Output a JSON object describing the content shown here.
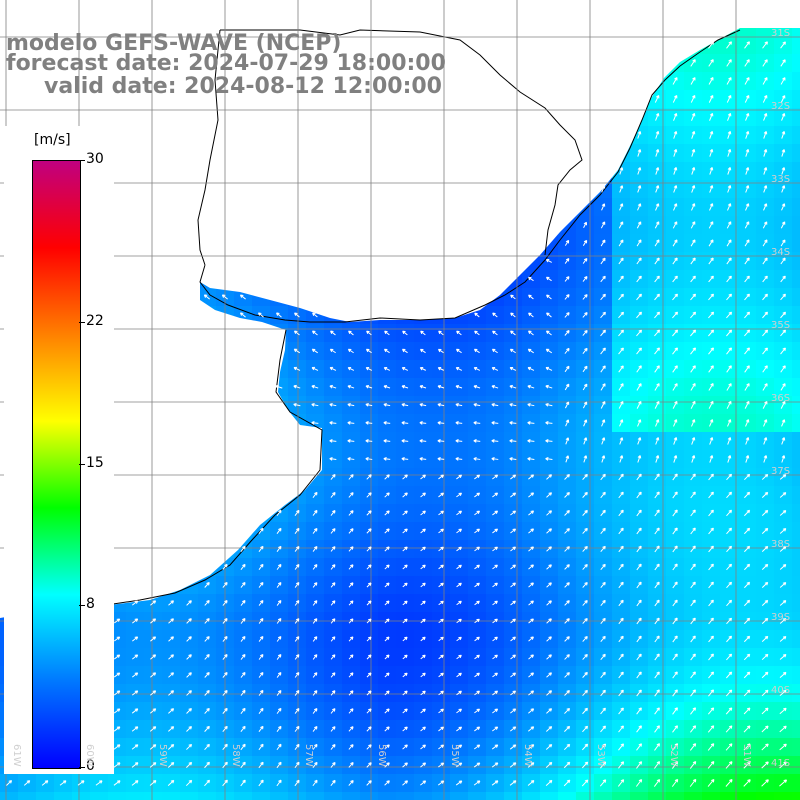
{
  "header": {
    "line1": "modelo GEFS-WAVE (NCEP)",
    "line2": "forecast date: 2024-07-29 18:00:00",
    "line3": "valid date: 2024-08-12 12:00:00"
  },
  "colorbar": {
    "unit": "[m/s]",
    "ticks": [
      "30",
      "22",
      "15",
      "8",
      "0"
    ],
    "tick_values": [
      30,
      22,
      15,
      8,
      0
    ],
    "min": 0,
    "max": 30,
    "colors": [
      "#0000ff",
      "#0078ff",
      "#00ffff",
      "#00ff00",
      "#ffff00",
      "#ff8000",
      "#ff0000",
      "#c00080"
    ]
  },
  "map": {
    "lon_labels": [
      "61W",
      "60W",
      "59W",
      "58W",
      "57W",
      "56W",
      "55W",
      "54W",
      "53W",
      "52W",
      "51W"
    ],
    "lat_labels": [
      "31S",
      "32S",
      "33S",
      "34S",
      "35S",
      "36S",
      "37S",
      "38S",
      "39S",
      "40S",
      "41S"
    ],
    "land_color": "#ffffff",
    "grid_color": "#808080",
    "arrow_color": "#ffffff"
  }
}
